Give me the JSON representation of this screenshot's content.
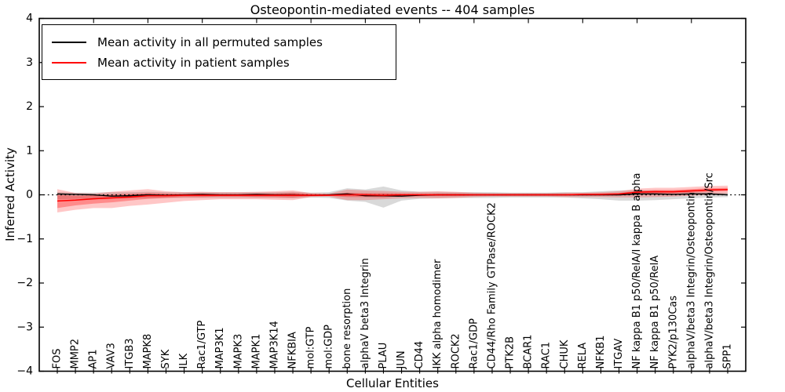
{
  "title": "Osteopontin-mediated events -- 404 samples",
  "legend": {
    "items": [
      {
        "label": "Mean activity in all permuted samples",
        "color": "#000000"
      },
      {
        "label": "Mean activity in patient samples",
        "color": "#ff0000"
      }
    ]
  },
  "colors": {
    "permuted_line": "#000000",
    "patient_line": "#ff0000",
    "permuted_band": "rgba(128,128,128,0.30)",
    "patient_band_outer": "rgba(255,0,0,0.22)",
    "patient_band_inner": "rgba(255,0,0,0.30)",
    "frame": "#000000"
  },
  "chart_data": {
    "type": "line",
    "title": "Osteopontin-mediated events -- 404 samples",
    "xlabel": "Cellular Entities",
    "ylabel": "Inferred Activity",
    "ylim": [
      -4,
      4
    ],
    "ytick_values": [
      4,
      3,
      2,
      1,
      0,
      -1,
      -2,
      -3,
      -4
    ],
    "ytick_labels": [
      "4",
      "3",
      "2",
      "1",
      "0",
      "−1",
      "−2",
      "−3",
      "−4"
    ],
    "legend_position": "upper left",
    "grid": false,
    "zero_line": "dotted",
    "categories": [
      "FOS",
      "MMP2",
      "AP1",
      "VAV3",
      "ITGB3",
      "MAPK8",
      "SYK",
      "ILK",
      "Rac1/GTP",
      "MAP3K1",
      "MAPK3",
      "MAPK1",
      "MAP3K14",
      "NFKBIA",
      "mol:GTP",
      "mol:GDP",
      "bone resorption",
      "alphaV beta3 Integrin",
      "PLAU",
      "JUN",
      "CD44",
      "IKK alpha homodimer",
      "ROCK2",
      "Rac1/GDP",
      "CD44/Rho Family GTPase/ROCK2",
      "PTK2B",
      "BCAR1",
      "RAC1",
      "CHUK",
      "RELA",
      "NFKB1",
      "ITGAV",
      "NF kappa B1 p50/RelA/I kappa B alpha",
      "NF kappa B1 p50/RelA",
      "PYK2/p130Cas",
      "alphaV/beta3 Integrin/Osteopontin",
      "alphaV/beta3 Integrin/Osteopontin/Src",
      "SPP1"
    ],
    "series": [
      {
        "name": "Mean activity in all permuted samples",
        "color": "#000000",
        "width": 1.4,
        "values": [
          0.02,
          0.01,
          0.0,
          -0.03,
          -0.02,
          0.0,
          -0.01,
          0.0,
          0.01,
          0.0,
          0.0,
          0.01,
          0.0,
          0.0,
          -0.01,
          0.0,
          0.02,
          -0.02,
          -0.02,
          -0.03,
          -0.01,
          0.0,
          0.0,
          0.0,
          0.0,
          0.0,
          0.0,
          0.0,
          0.0,
          0.0,
          0.0,
          0.0,
          0.02,
          0.02,
          0.01,
          0.02,
          0.02,
          0.0
        ]
      },
      {
        "name": "Mean activity in patient samples",
        "color": "#ff0000",
        "width": 1.6,
        "values": [
          -0.14,
          -0.12,
          -0.09,
          -0.07,
          -0.05,
          -0.02,
          -0.02,
          -0.01,
          -0.01,
          -0.01,
          -0.01,
          -0.01,
          -0.01,
          -0.01,
          -0.01,
          -0.01,
          0.0,
          0.0,
          -0.01,
          0.0,
          0.0,
          0.0,
          0.0,
          0.0,
          0.0,
          0.0,
          0.0,
          0.0,
          0.0,
          0.01,
          0.01,
          0.02,
          0.06,
          0.07,
          0.07,
          0.09,
          0.11,
          0.12
        ]
      }
    ],
    "bands": [
      {
        "name": "permuted-std-band",
        "color": "rgba(128,128,128,0.30)",
        "top": [
          0.06,
          0.05,
          0.05,
          0.06,
          0.06,
          0.07,
          0.06,
          0.06,
          0.06,
          0.06,
          0.06,
          0.06,
          0.06,
          0.07,
          0.05,
          0.06,
          0.15,
          0.12,
          0.19,
          0.1,
          0.07,
          0.07,
          0.06,
          0.06,
          0.06,
          0.05,
          0.05,
          0.05,
          0.06,
          0.06,
          0.08,
          0.1,
          0.11,
          0.1,
          0.08,
          0.07,
          0.06,
          0.05
        ],
        "bottom": [
          -0.1,
          -0.09,
          -0.08,
          -0.08,
          -0.08,
          -0.08,
          -0.07,
          -0.07,
          -0.07,
          -0.07,
          -0.07,
          -0.07,
          -0.07,
          -0.08,
          -0.06,
          -0.07,
          -0.13,
          -0.16,
          -0.29,
          -0.13,
          -0.09,
          -0.08,
          -0.07,
          -0.07,
          -0.07,
          -0.06,
          -0.06,
          -0.06,
          -0.06,
          -0.08,
          -0.1,
          -0.13,
          -0.13,
          -0.12,
          -0.1,
          -0.08,
          -0.06,
          -0.05
        ]
      },
      {
        "name": "patient-std-band-outer",
        "color": "rgba(255,0,0,0.22)",
        "top": [
          0.13,
          0.04,
          0.03,
          0.07,
          0.1,
          0.13,
          0.08,
          0.06,
          0.07,
          0.06,
          0.06,
          0.07,
          0.08,
          0.1,
          0.04,
          0.03,
          0.12,
          0.1,
          0.09,
          0.07,
          0.07,
          0.08,
          0.07,
          0.05,
          0.04,
          0.04,
          0.04,
          0.04,
          0.05,
          0.05,
          0.06,
          0.08,
          0.14,
          0.16,
          0.16,
          0.18,
          0.2,
          0.21
        ],
        "bottom": [
          -0.4,
          -0.34,
          -0.3,
          -0.3,
          -0.25,
          -0.22,
          -0.18,
          -0.14,
          -0.12,
          -0.1,
          -0.1,
          -0.1,
          -0.11,
          -0.12,
          -0.05,
          -0.04,
          -0.12,
          -0.12,
          -0.1,
          -0.08,
          -0.07,
          -0.08,
          -0.07,
          -0.05,
          -0.04,
          -0.04,
          -0.04,
          -0.04,
          -0.05,
          -0.05,
          -0.05,
          -0.06,
          -0.06,
          -0.05,
          -0.04,
          -0.02,
          0.0,
          0.03
        ]
      },
      {
        "name": "patient-sem-band-inner",
        "color": "rgba(255,0,0,0.30)",
        "top": [
          0.0,
          -0.02,
          -0.01,
          0.01,
          0.02,
          0.04,
          0.03,
          0.02,
          0.03,
          0.02,
          0.02,
          0.03,
          0.03,
          0.05,
          0.02,
          0.01,
          0.05,
          0.04,
          0.04,
          0.03,
          0.03,
          0.03,
          0.03,
          0.02,
          0.02,
          0.02,
          0.02,
          0.02,
          0.02,
          0.02,
          0.03,
          0.04,
          0.09,
          0.11,
          0.11,
          0.13,
          0.15,
          0.16
        ],
        "bottom": [
          -0.3,
          -0.24,
          -0.2,
          -0.17,
          -0.13,
          -0.09,
          -0.07,
          -0.05,
          -0.05,
          -0.04,
          -0.04,
          -0.05,
          -0.05,
          -0.06,
          -0.03,
          -0.02,
          -0.05,
          -0.05,
          -0.06,
          -0.03,
          -0.03,
          -0.03,
          -0.03,
          -0.02,
          -0.02,
          -0.02,
          -0.02,
          -0.02,
          -0.02,
          -0.02,
          -0.02,
          -0.01,
          0.02,
          0.03,
          0.03,
          0.05,
          0.07,
          0.08
        ]
      }
    ]
  }
}
